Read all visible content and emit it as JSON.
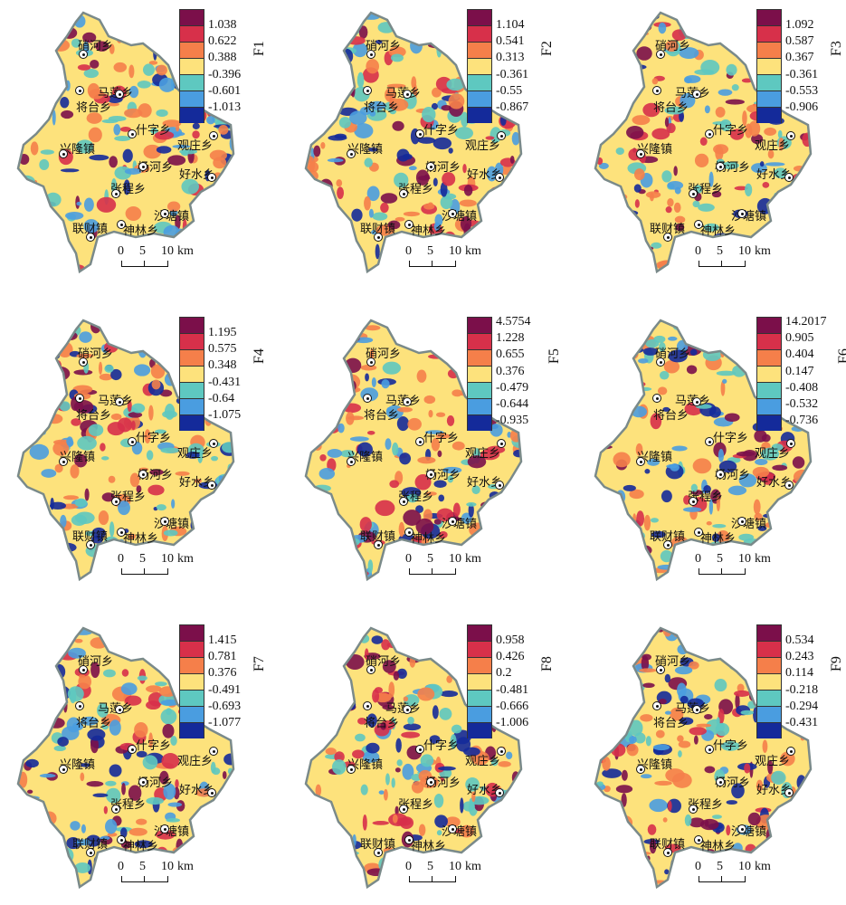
{
  "colors": [
    "#7b0f4a",
    "#d7304a",
    "#f57f4a",
    "#fde27c",
    "#5ec8c0",
    "#4a9de0",
    "#142a9a"
  ],
  "scale": {
    "labels": [
      "0",
      "5",
      "10"
    ],
    "unit": "km"
  },
  "places": [
    "硝河乡",
    "马莲乡",
    "将台乡",
    "什字乡",
    "兴隆镇",
    "观庄乡",
    "杨河乡",
    "好水乡",
    "张程乡",
    "沙塘镇",
    "联财镇",
    "神林乡"
  ],
  "panels": [
    {
      "title": "F1",
      "values": [
        "1.038",
        "0.622",
        "0.388",
        "-0.396",
        "-0.601",
        "-1.013"
      ]
    },
    {
      "title": "F2",
      "values": [
        "1.104",
        "0.541",
        "0.313",
        "-0.361",
        "-0.55",
        "-0.867"
      ]
    },
    {
      "title": "F3",
      "values": [
        "1.092",
        "0.587",
        "0.367",
        "-0.361",
        "-0.553",
        "-0.906"
      ]
    },
    {
      "title": "F4",
      "values": [
        "1.195",
        "0.575",
        "0.348",
        "-0.431",
        "-0.64",
        "-1.075"
      ]
    },
    {
      "title": "F5",
      "values": [
        "4.5754",
        "1.228",
        "0.655",
        "0.376",
        "-0.479",
        "-0.644",
        "-0.935"
      ]
    },
    {
      "title": "F6",
      "values": [
        "14.2017",
        "0.905",
        "0.404",
        "0.147",
        "-0.408",
        "-0.532",
        "-0.736"
      ]
    },
    {
      "title": "F7",
      "values": [
        "1.415",
        "0.781",
        "0.376",
        "-0.491",
        "-0.693",
        "-1.077"
      ]
    },
    {
      "title": "F8",
      "values": [
        "0.958",
        "0.426",
        "0.2",
        "-0.481",
        "-0.666",
        "-1.006"
      ]
    },
    {
      "title": "F9",
      "values": [
        "0.534",
        "0.243",
        "0.114",
        "-0.218",
        "-0.294",
        "-0.431"
      ]
    }
  ]
}
